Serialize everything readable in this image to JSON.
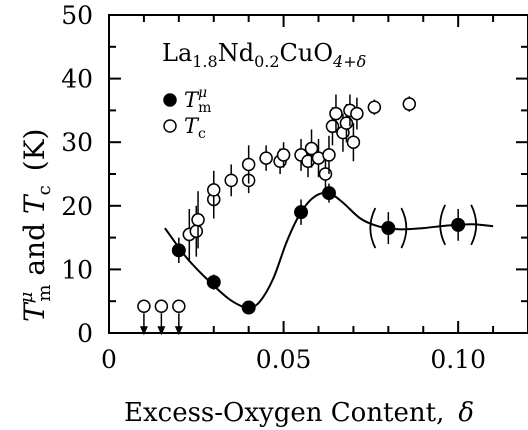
{
  "chart_data": {
    "type": "scatter",
    "title": "La1.8Nd0.2CuO4+δ",
    "title_parts": {
      "base1": "La",
      "sub1": "1.8",
      "base2": "Nd",
      "sub2": "0.2",
      "base3": "CuO",
      "sub3": "4+δ"
    },
    "xlabel": "Excess-Oxygen Content,",
    "xlabel_symbol": "δ",
    "ylabel": "T_m^μ and T_c (K)",
    "ylabel_parts": {
      "t1": "T",
      "t1_sub": "m",
      "t1_sup": "μ",
      "mid": " and ",
      "t2": "T",
      "t2_sub": "c",
      "unit": "(K)"
    },
    "xlim": [
      0,
      0.12
    ],
    "ylim": [
      0,
      50
    ],
    "xticks": [
      {
        "v": 0,
        "label": "0"
      },
      {
        "v": 0.05,
        "label": "0.05"
      },
      {
        "v": 0.1,
        "label": "0.10"
      }
    ],
    "yticks": [
      {
        "v": 0,
        "label": "0"
      },
      {
        "v": 10,
        "label": "10"
      },
      {
        "v": 20,
        "label": "20"
      },
      {
        "v": 30,
        "label": "30"
      },
      {
        "v": 40,
        "label": "40"
      },
      {
        "v": 50,
        "label": "50"
      }
    ],
    "legend_position": "top-left",
    "series": [
      {
        "name": "T_m^μ",
        "legend_parts": {
          "t": "T",
          "sub": "m",
          "sup": "μ"
        },
        "marker": "filled-circle",
        "points": [
          {
            "x": 0.02,
            "y": 13,
            "err": 2
          },
          {
            "x": 0.03,
            "y": 8,
            "err": 1.2
          },
          {
            "x": 0.04,
            "y": 4,
            "err": 0.6
          },
          {
            "x": 0.055,
            "y": 19,
            "err": 2
          },
          {
            "x": 0.063,
            "y": 22,
            "err": 1.5
          },
          {
            "x": 0.08,
            "y": 16.5,
            "err": 2.5,
            "bracketed": true
          },
          {
            "x": 0.1,
            "y": 17,
            "err": 2.5,
            "bracketed": true
          }
        ],
        "fit_curve": [
          [
            0.016,
            16.5
          ],
          [
            0.022,
            12
          ],
          [
            0.028,
            8.5
          ],
          [
            0.034,
            5.5
          ],
          [
            0.038,
            4.2
          ],
          [
            0.04,
            4
          ],
          [
            0.043,
            4.8
          ],
          [
            0.047,
            8.5
          ],
          [
            0.051,
            14.5
          ],
          [
            0.055,
            19
          ],
          [
            0.059,
            21.5
          ],
          [
            0.063,
            22
          ],
          [
            0.067,
            20.5
          ],
          [
            0.072,
            18
          ],
          [
            0.077,
            16.8
          ],
          [
            0.083,
            16.3
          ],
          [
            0.09,
            16.5
          ],
          [
            0.097,
            16.9
          ],
          [
            0.104,
            17.1
          ],
          [
            0.11,
            16.8
          ]
        ]
      },
      {
        "name": "T_c",
        "legend_parts": {
          "t": "T",
          "sub": "c"
        },
        "marker": "open-circle",
        "points": [
          {
            "x": 0.01,
            "y": 4.2,
            "arrow": true
          },
          {
            "x": 0.015,
            "y": 4.2,
            "arrow": true
          },
          {
            "x": 0.02,
            "y": 4.2,
            "arrow": true
          },
          {
            "x": 0.023,
            "y": 15.5,
            "err": 4
          },
          {
            "x": 0.025,
            "y": 16,
            "err": 4
          },
          {
            "x": 0.0255,
            "y": 17.8,
            "err": 4.5
          },
          {
            "x": 0.03,
            "y": 21,
            "err": 3
          },
          {
            "x": 0.03,
            "y": 22.5,
            "err": 3
          },
          {
            "x": 0.035,
            "y": 24,
            "err": 2.5
          },
          {
            "x": 0.04,
            "y": 24,
            "err": 2
          },
          {
            "x": 0.04,
            "y": 26.5,
            "err": 3
          },
          {
            "x": 0.045,
            "y": 27.5,
            "err": 2
          },
          {
            "x": 0.049,
            "y": 27,
            "err": 2
          },
          {
            "x": 0.05,
            "y": 28,
            "err": 2
          },
          {
            "x": 0.055,
            "y": 28,
            "err": 2.5
          },
          {
            "x": 0.057,
            "y": 27,
            "err": 2.5
          },
          {
            "x": 0.058,
            "y": 29,
            "err": 3
          },
          {
            "x": 0.06,
            "y": 27.5,
            "err": 3
          },
          {
            "x": 0.062,
            "y": 25,
            "err": 3
          },
          {
            "x": 0.063,
            "y": 28,
            "err": 3
          },
          {
            "x": 0.064,
            "y": 32.5,
            "err": 3
          },
          {
            "x": 0.065,
            "y": 34.5,
            "err": 3
          },
          {
            "x": 0.067,
            "y": 31.5,
            "err": 3
          },
          {
            "x": 0.068,
            "y": 33,
            "err": 3
          },
          {
            "x": 0.069,
            "y": 35,
            "err": 2.5
          },
          {
            "x": 0.07,
            "y": 30,
            "err": 3
          },
          {
            "x": 0.071,
            "y": 34.5,
            "err": 2.5
          },
          {
            "x": 0.076,
            "y": 35.5,
            "err": 1.2
          },
          {
            "x": 0.086,
            "y": 36,
            "err": 1.2
          }
        ]
      }
    ]
  }
}
